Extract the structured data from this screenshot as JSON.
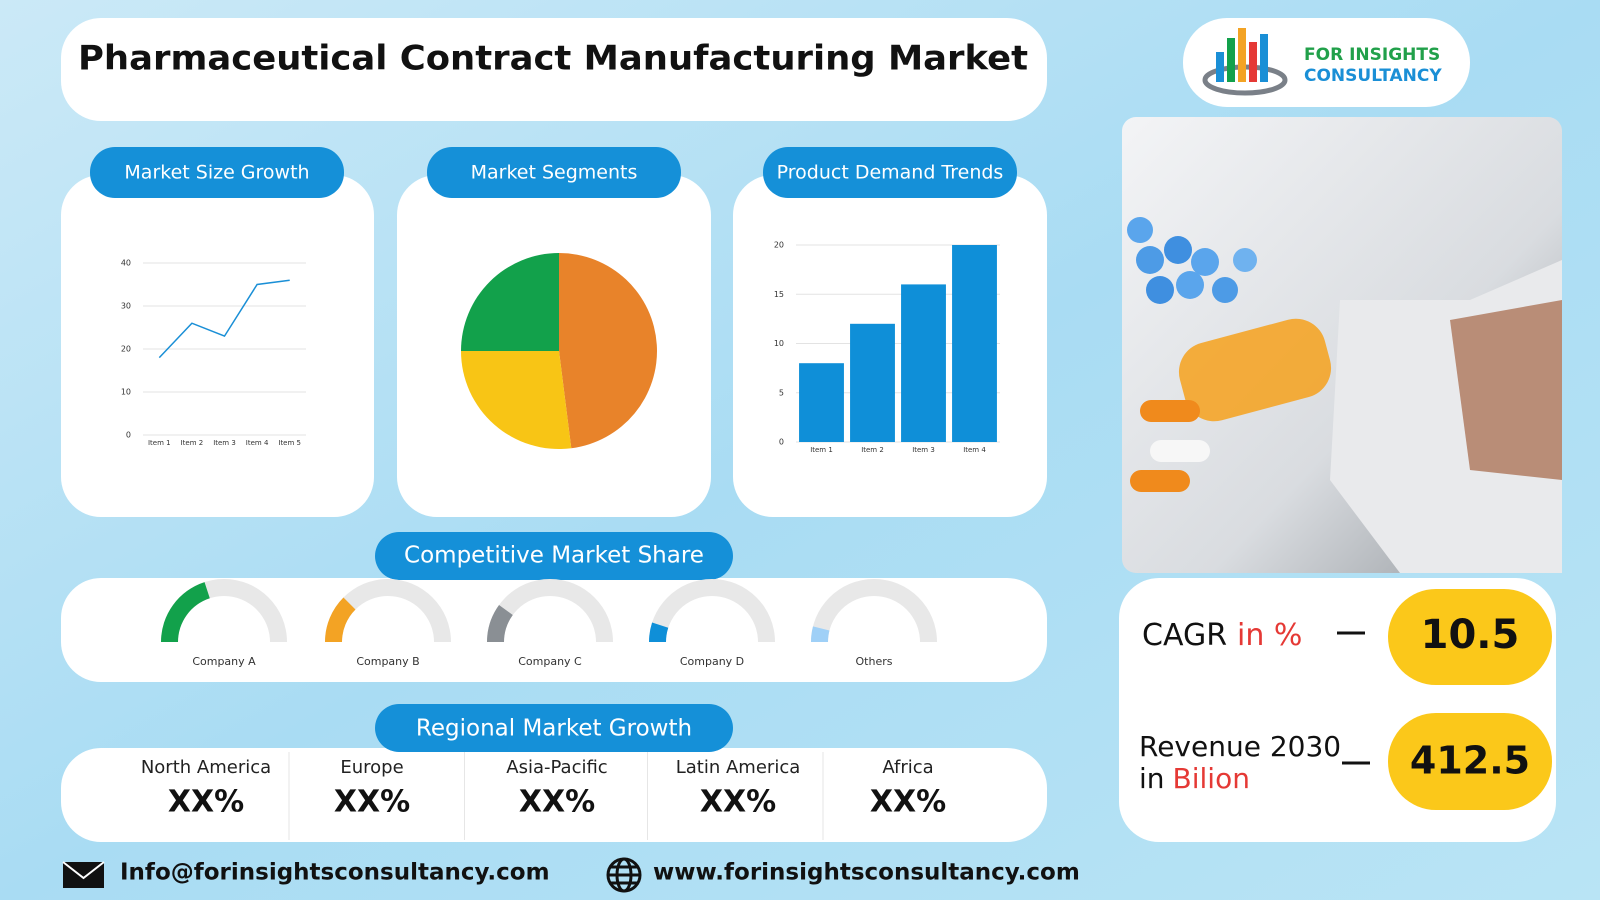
{
  "header": {
    "title": "Pharmaceutical Contract Manufacturing Market"
  },
  "logo": {
    "line1": "FOR INSIGHTS",
    "line2": "CONSULTANCY"
  },
  "chart_data": [
    {
      "type": "line",
      "title": "Market Size Growth",
      "categories": [
        "Item 1",
        "Item 2",
        "Item 3",
        "Item 4",
        "Item 5"
      ],
      "values": [
        18,
        26,
        23,
        35,
        36
      ],
      "color": "#1a8fd6",
      "ylim": [
        0,
        40
      ],
      "yticks": [
        0,
        10,
        20,
        30,
        40
      ],
      "grid": true
    },
    {
      "type": "pie",
      "title": "Market Segments",
      "values": [
        48,
        27,
        25
      ],
      "colors": [
        "#e8832a",
        "#f8c515",
        "#12a14b"
      ]
    },
    {
      "type": "bar",
      "title": "Product Demand Trends",
      "categories": [
        "Item 1",
        "Item 2",
        "Item 3",
        "Item 4"
      ],
      "values": [
        8,
        12,
        16,
        20
      ],
      "color": "#0f8fd8",
      "ylim": [
        0,
        20
      ],
      "yticks": [
        0,
        5,
        10,
        15,
        20
      ],
      "grid": true
    },
    {
      "type": "gauge",
      "title": "Competitive Market Share",
      "categories": [
        "Company A",
        "Company B",
        "Company C",
        "Company D",
        "Others"
      ],
      "values": [
        40,
        25,
        20,
        10,
        8
      ],
      "colors": [
        "#12a14b",
        "#f3a324",
        "#8a8f94",
        "#0f8fd8",
        "#9fd0f7"
      ],
      "ylim": [
        0,
        100
      ]
    }
  ],
  "regional": {
    "title": "Regional Market Growth",
    "regions": [
      {
        "name": "North America",
        "value": "XX%"
      },
      {
        "name": "Europe",
        "value": "XX%"
      },
      {
        "name": "Asia-Pacific",
        "value": "XX%"
      },
      {
        "name": "Latin America",
        "value": "XX%"
      },
      {
        "name": "Africa",
        "value": "XX%"
      }
    ]
  },
  "kpis": {
    "cagr": {
      "label": "CAGR",
      "unit": "in %",
      "value": 10.5
    },
    "revenue": {
      "label": "Revenue 2030",
      "prefix": "in",
      "unit": "Bilion",
      "value": 412.5
    }
  },
  "contact": {
    "email": "Info@forinsightsconsultancy.com",
    "website": "www.forinsightsconsultancy.com"
  }
}
